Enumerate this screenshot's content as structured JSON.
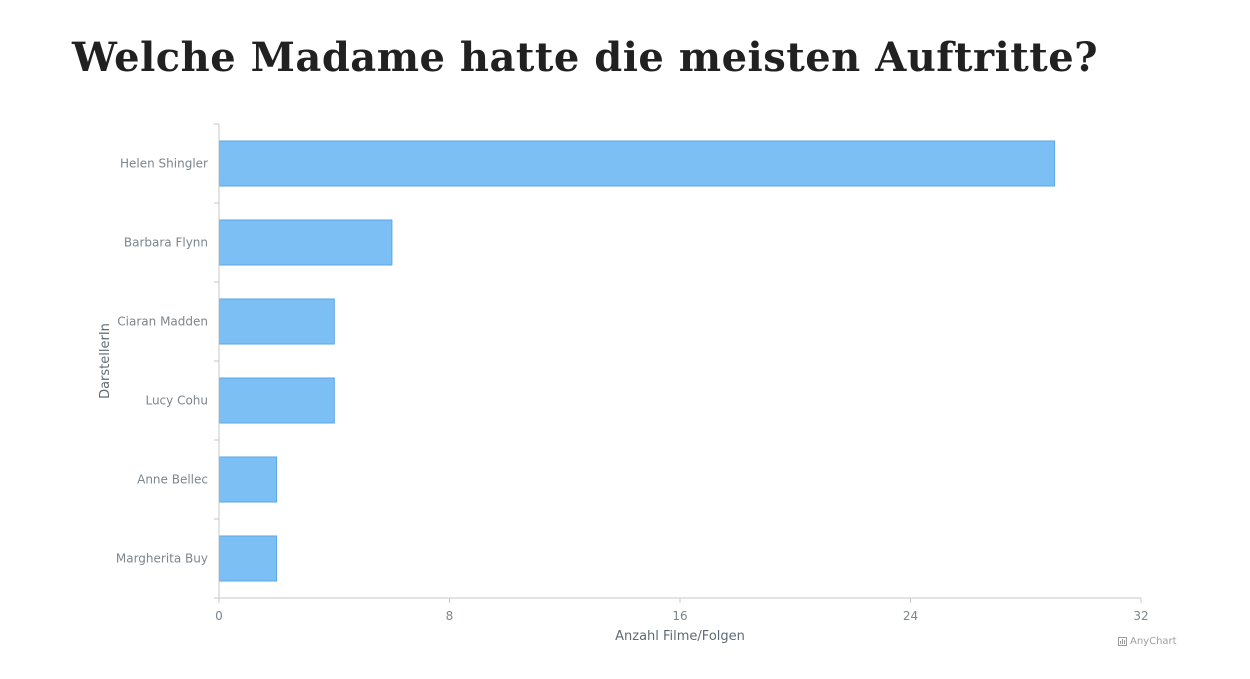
{
  "page": {
    "title": "Welche Madame hatte die meisten Auftritte?",
    "credits": "AnyChart"
  },
  "chart_data": {
    "type": "bar",
    "orientation": "horizontal",
    "categories": [
      "Helen Shingler",
      "Barbara Flynn",
      "Ciaran Madden",
      "Lucy Cohu",
      "Anne Bellec",
      "Margherita Buy"
    ],
    "values": [
      29,
      6,
      4,
      4,
      2,
      2
    ],
    "xlabel": "Anzahl Filme/Folgen",
    "ylabel": "DarstellerIn",
    "xlim": [
      0,
      32
    ],
    "ticks": [
      0,
      8,
      16,
      24,
      32
    ],
    "grid": false,
    "legend": "none",
    "colors": {
      "bar_fill": "#7cbff5",
      "bar_stroke": "#5aa5e6",
      "axis": "#c7c7c7",
      "label": "#7c868e"
    }
  }
}
